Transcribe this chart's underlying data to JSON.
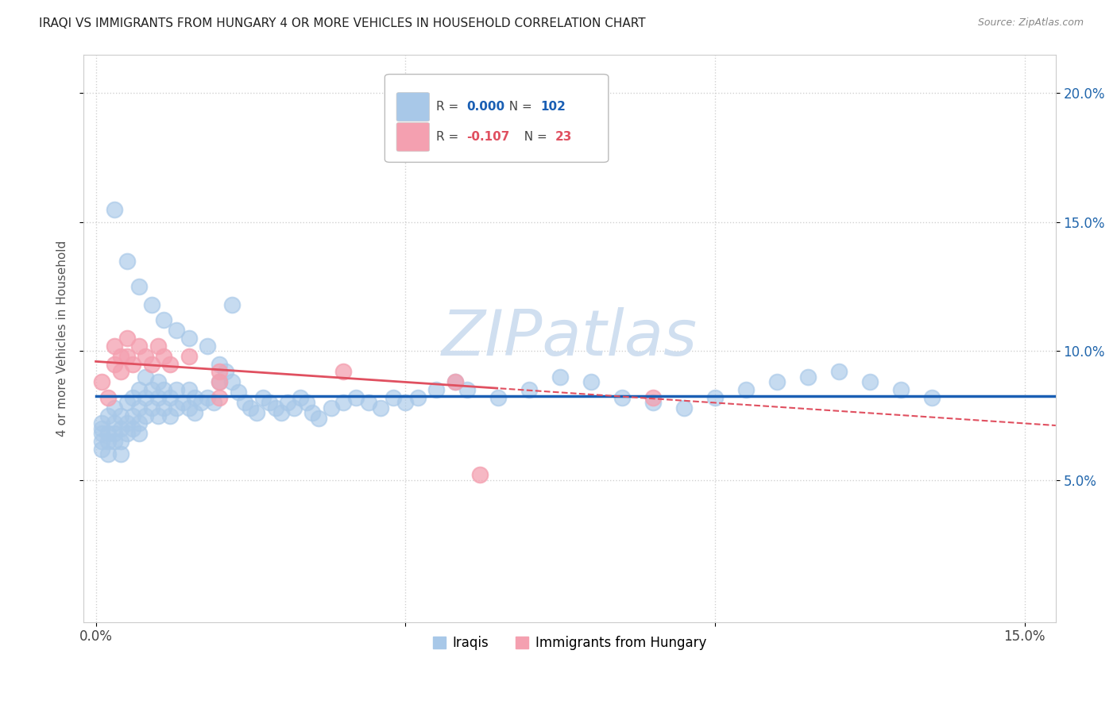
{
  "title": "IRAQI VS IMMIGRANTS FROM HUNGARY 4 OR MORE VEHICLES IN HOUSEHOLD CORRELATION CHART",
  "source": "Source: ZipAtlas.com",
  "ylabel": "4 or more Vehicles in Household",
  "xlim": [
    -0.002,
    0.155
  ],
  "ylim": [
    -0.005,
    0.215
  ],
  "xticks": [
    0.0,
    0.05,
    0.1,
    0.15
  ],
  "xtick_labels": [
    "0.0%",
    "",
    "",
    "15.0%"
  ],
  "yticks": [
    0.05,
    0.1,
    0.15,
    0.2
  ],
  "ytick_labels": [
    "5.0%",
    "10.0%",
    "15.0%",
    "20.0%"
  ],
  "iraqis_color": "#a8c8e8",
  "hungary_color": "#f4a0b0",
  "trendline_iraqis_color": "#1a5fb4",
  "trendline_hungary_color": "#e05060",
  "watermark_color": "#d0dff0",
  "legend_R1": "0.000",
  "legend_N1": "102",
  "legend_R2": "-0.107",
  "legend_N2": "23",
  "iraqis_x": [
    0.001,
    0.001,
    0.001,
    0.001,
    0.001,
    0.002,
    0.002,
    0.002,
    0.002,
    0.003,
    0.003,
    0.003,
    0.003,
    0.004,
    0.004,
    0.004,
    0.004,
    0.005,
    0.005,
    0.005,
    0.006,
    0.006,
    0.006,
    0.007,
    0.007,
    0.007,
    0.007,
    0.008,
    0.008,
    0.008,
    0.009,
    0.009,
    0.01,
    0.01,
    0.01,
    0.011,
    0.011,
    0.012,
    0.012,
    0.013,
    0.013,
    0.014,
    0.015,
    0.015,
    0.016,
    0.016,
    0.017,
    0.018,
    0.019,
    0.02,
    0.02,
    0.021,
    0.022,
    0.023,
    0.024,
    0.025,
    0.026,
    0.027,
    0.028,
    0.029,
    0.03,
    0.031,
    0.032,
    0.033,
    0.034,
    0.035,
    0.036,
    0.038,
    0.04,
    0.042,
    0.044,
    0.046,
    0.048,
    0.05,
    0.052,
    0.055,
    0.058,
    0.06,
    0.065,
    0.07,
    0.075,
    0.08,
    0.085,
    0.09,
    0.095,
    0.1,
    0.105,
    0.11,
    0.115,
    0.12,
    0.125,
    0.13,
    0.135,
    0.003,
    0.005,
    0.007,
    0.009,
    0.011,
    0.013,
    0.015,
    0.018,
    0.022
  ],
  "iraqis_y": [
    0.07,
    0.072,
    0.068,
    0.065,
    0.062,
    0.075,
    0.068,
    0.065,
    0.06,
    0.078,
    0.072,
    0.068,
    0.065,
    0.075,
    0.07,
    0.065,
    0.06,
    0.08,
    0.072,
    0.068,
    0.082,
    0.075,
    0.07,
    0.085,
    0.078,
    0.072,
    0.068,
    0.09,
    0.082,
    0.075,
    0.085,
    0.078,
    0.088,
    0.082,
    0.075,
    0.085,
    0.078,
    0.082,
    0.075,
    0.085,
    0.078,
    0.08,
    0.085,
    0.078,
    0.082,
    0.076,
    0.08,
    0.082,
    0.08,
    0.095,
    0.088,
    0.092,
    0.088,
    0.084,
    0.08,
    0.078,
    0.076,
    0.082,
    0.08,
    0.078,
    0.076,
    0.08,
    0.078,
    0.082,
    0.08,
    0.076,
    0.074,
    0.078,
    0.08,
    0.082,
    0.08,
    0.078,
    0.082,
    0.08,
    0.082,
    0.085,
    0.088,
    0.085,
    0.082,
    0.085,
    0.09,
    0.088,
    0.082,
    0.08,
    0.078,
    0.082,
    0.085,
    0.088,
    0.09,
    0.092,
    0.088,
    0.085,
    0.082,
    0.155,
    0.135,
    0.125,
    0.118,
    0.112,
    0.108,
    0.105,
    0.102,
    0.118
  ],
  "hungary_x": [
    0.001,
    0.002,
    0.003,
    0.003,
    0.004,
    0.004,
    0.005,
    0.005,
    0.006,
    0.007,
    0.008,
    0.009,
    0.01,
    0.011,
    0.012,
    0.015,
    0.02,
    0.02,
    0.02,
    0.04,
    0.058,
    0.062,
    0.09
  ],
  "hungary_y": [
    0.088,
    0.082,
    0.102,
    0.095,
    0.098,
    0.092,
    0.105,
    0.098,
    0.095,
    0.102,
    0.098,
    0.095,
    0.102,
    0.098,
    0.095,
    0.098,
    0.092,
    0.088,
    0.082,
    0.092,
    0.088,
    0.052,
    0.082
  ]
}
